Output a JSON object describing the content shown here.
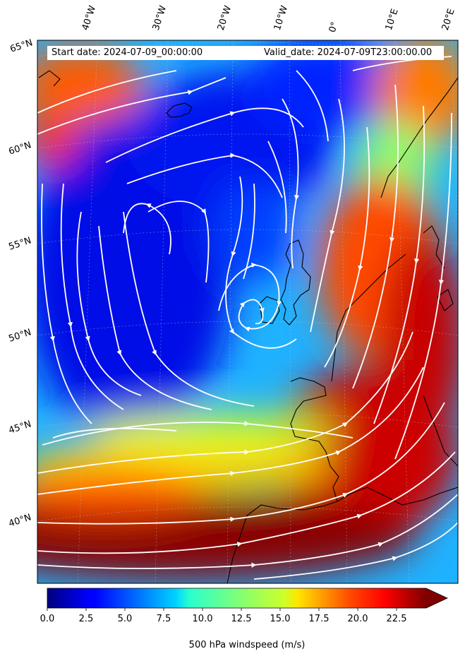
{
  "header": {
    "start_date": "Start date: 2024-07-09_00:00:00",
    "valid_date": "Valid_date: 2024-07-09T23:00:00.00"
  },
  "map": {
    "longitude_labels": [
      "40°W",
      "30°W",
      "20°W",
      "10°W",
      "0°",
      "10°E",
      "20°E"
    ],
    "latitude_labels": [
      "65°N",
      "60°N",
      "55°N",
      "50°N",
      "45°N",
      "40°N"
    ],
    "field": "500 hPa windspeed",
    "colormap": "jet"
  },
  "colorbar": {
    "label": "500 hPa windspeed (m/s)",
    "ticks": [
      "0.0",
      "2.5",
      "5.0",
      "7.5",
      "10.0",
      "12.5",
      "15.0",
      "17.5",
      "20.0",
      "22.5"
    ],
    "min": 0,
    "max": 25,
    "extend": "max"
  },
  "chart_data": {
    "type": "heatmap",
    "title": "",
    "xlabel": "",
    "ylabel": "",
    "variable": "500 hPa windspeed (m/s)",
    "range": [
      0,
      25
    ],
    "colormap": "jet",
    "overlay": "streamlines",
    "x": [
      "40°W",
      "30°W",
      "20°W",
      "10°W",
      "0°",
      "10°E",
      "20°E"
    ],
    "y": [
      "65°N",
      "60°N",
      "55°N",
      "50°N",
      "45°N",
      "40°N"
    ]
  }
}
